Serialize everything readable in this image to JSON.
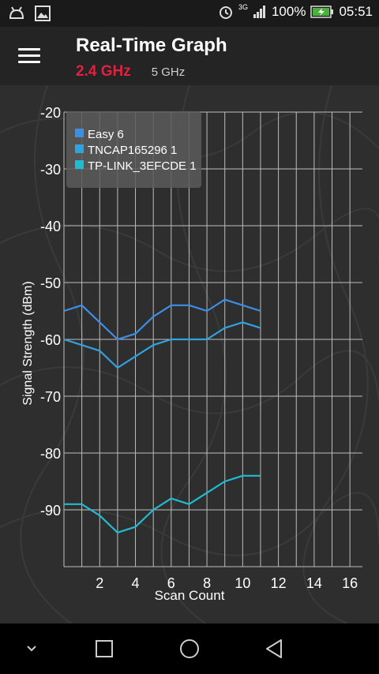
{
  "statusbar": {
    "network": "3G",
    "battery": "100%",
    "time": "05:51"
  },
  "header": {
    "title": "Real-Time Graph",
    "tabs": [
      {
        "label": "2.4 GHz",
        "active": true
      },
      {
        "label": "5 GHz",
        "active": false
      }
    ]
  },
  "chart_data": {
    "type": "line",
    "xlabel": "Scan Count",
    "ylabel": "Signal Strength (dBm)",
    "xlim": [
      0,
      16.7
    ],
    "ylim": [
      -100,
      -20
    ],
    "x_ticks": [
      2,
      4,
      6,
      8,
      10,
      12,
      14,
      16
    ],
    "y_ticks": [
      -20,
      -30,
      -40,
      -50,
      -60,
      -70,
      -80,
      -90
    ],
    "grid": true,
    "legend_position": "top-left",
    "x": [
      0,
      1,
      2,
      3,
      4,
      5,
      6,
      7,
      8,
      9,
      10,
      11
    ],
    "series": [
      {
        "name": "Easy 6",
        "color": "#3d8ee6",
        "values": [
          -55,
          -54,
          -57,
          -60,
          -59,
          -56,
          -54,
          -54,
          -55,
          -53,
          -54,
          -55
        ]
      },
      {
        "name": "TNCAP165296 1",
        "color": "#2fa3e0",
        "values": [
          -60,
          -61,
          -62,
          -65,
          -63,
          -61,
          -60,
          -60,
          -60,
          -58,
          -57,
          -58
        ]
      },
      {
        "name": "TP-LINK_3EFCDE 1",
        "color": "#1fbcd2",
        "values": [
          -89,
          -89,
          -91,
          -94,
          -93,
          -90,
          -88,
          -89,
          -87,
          -85,
          -84,
          -84
        ]
      }
    ]
  }
}
